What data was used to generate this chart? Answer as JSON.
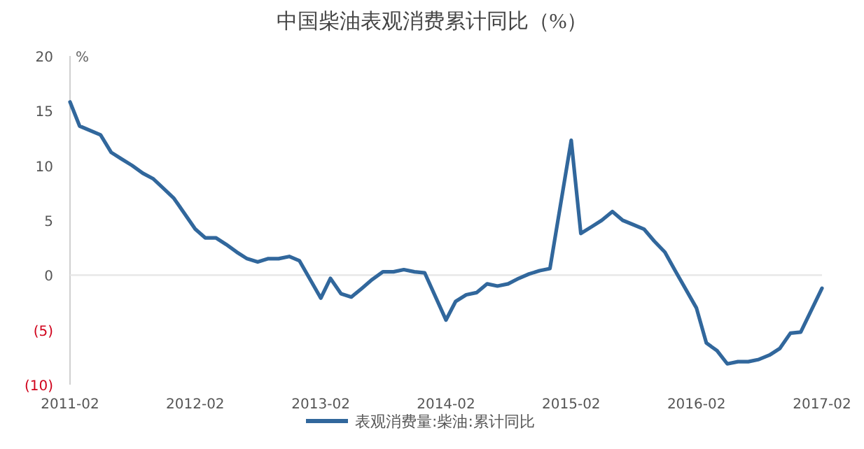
{
  "chart_data": {
    "type": "line",
    "title": "中国柴油表观消费累计同比（%）",
    "ylabel": "%",
    "x": [
      "2011-02",
      "2011-03",
      "2011-05",
      "2011-06",
      "2011-07",
      "2011-08",
      "2011-09",
      "2011-10",
      "2011-11",
      "2011-12",
      "2012-02",
      "2012-03",
      "2012-04",
      "2012-05",
      "2012-06",
      "2012-07",
      "2012-08",
      "2012-09",
      "2012-10",
      "2012-11",
      "2012-12",
      "2013-02",
      "2013-03",
      "2013-04",
      "2013-05",
      "2013-06",
      "2013-07",
      "2013-08",
      "2013-09",
      "2013-10",
      "2013-11",
      "2013-12",
      "2014-02",
      "2014-03",
      "2014-04",
      "2014-05",
      "2014-06",
      "2014-07",
      "2014-08",
      "2014-09",
      "2014-10",
      "2014-11",
      "2014-12",
      "2015-02",
      "2015-03",
      "2015-04",
      "2015-05",
      "2015-06",
      "2015-07",
      "2015-08",
      "2015-09",
      "2015-10",
      "2015-11",
      "2015-12",
      "2016-02",
      "2016-03",
      "2016-04",
      "2016-05",
      "2016-06",
      "2016-07",
      "2016-08",
      "2016-09",
      "2016-10",
      "2016-11",
      "2016-12",
      "2017-02"
    ],
    "series": [
      {
        "name": "表观消费量:柴油:累计同比",
        "color": "#31679c",
        "values": [
          15.8,
          13.6,
          12.8,
          11.2,
          10.6,
          10.0,
          9.3,
          8.8,
          7.9,
          7.0,
          4.2,
          3.4,
          3.4,
          2.8,
          2.1,
          1.5,
          1.2,
          1.5,
          1.5,
          1.7,
          1.3,
          -2.1,
          -0.3,
          -1.7,
          -2.0,
          -1.2,
          -0.4,
          0.3,
          0.3,
          0.5,
          0.3,
          0.2,
          -4.1,
          -2.4,
          -1.8,
          -1.6,
          -0.8,
          -1.0,
          -0.8,
          -0.3,
          0.1,
          0.4,
          0.6,
          12.3,
          3.8,
          4.4,
          5.0,
          5.8,
          5.0,
          4.6,
          4.2,
          3.1,
          2.1,
          0.4,
          -3.0,
          -6.2,
          -6.9,
          -8.1,
          -7.9,
          -7.9,
          -7.7,
          -7.3,
          -6.7,
          -5.3,
          -5.2,
          -1.2
        ]
      }
    ],
    "xlim": [
      "2011-02",
      "2017-02"
    ],
    "xticks": [
      "2011-02",
      "2012-02",
      "2013-02",
      "2014-02",
      "2015-02",
      "2016-02",
      "2017-02"
    ],
    "ylim": [
      -10,
      20
    ],
    "yticks": [
      20,
      15,
      10,
      5,
      0,
      {
        "value": -5,
        "label": "(5)"
      },
      {
        "value": -10,
        "label": "(10)"
      }
    ],
    "legend": "bottom",
    "marker": "none",
    "line_style": "solid"
  }
}
